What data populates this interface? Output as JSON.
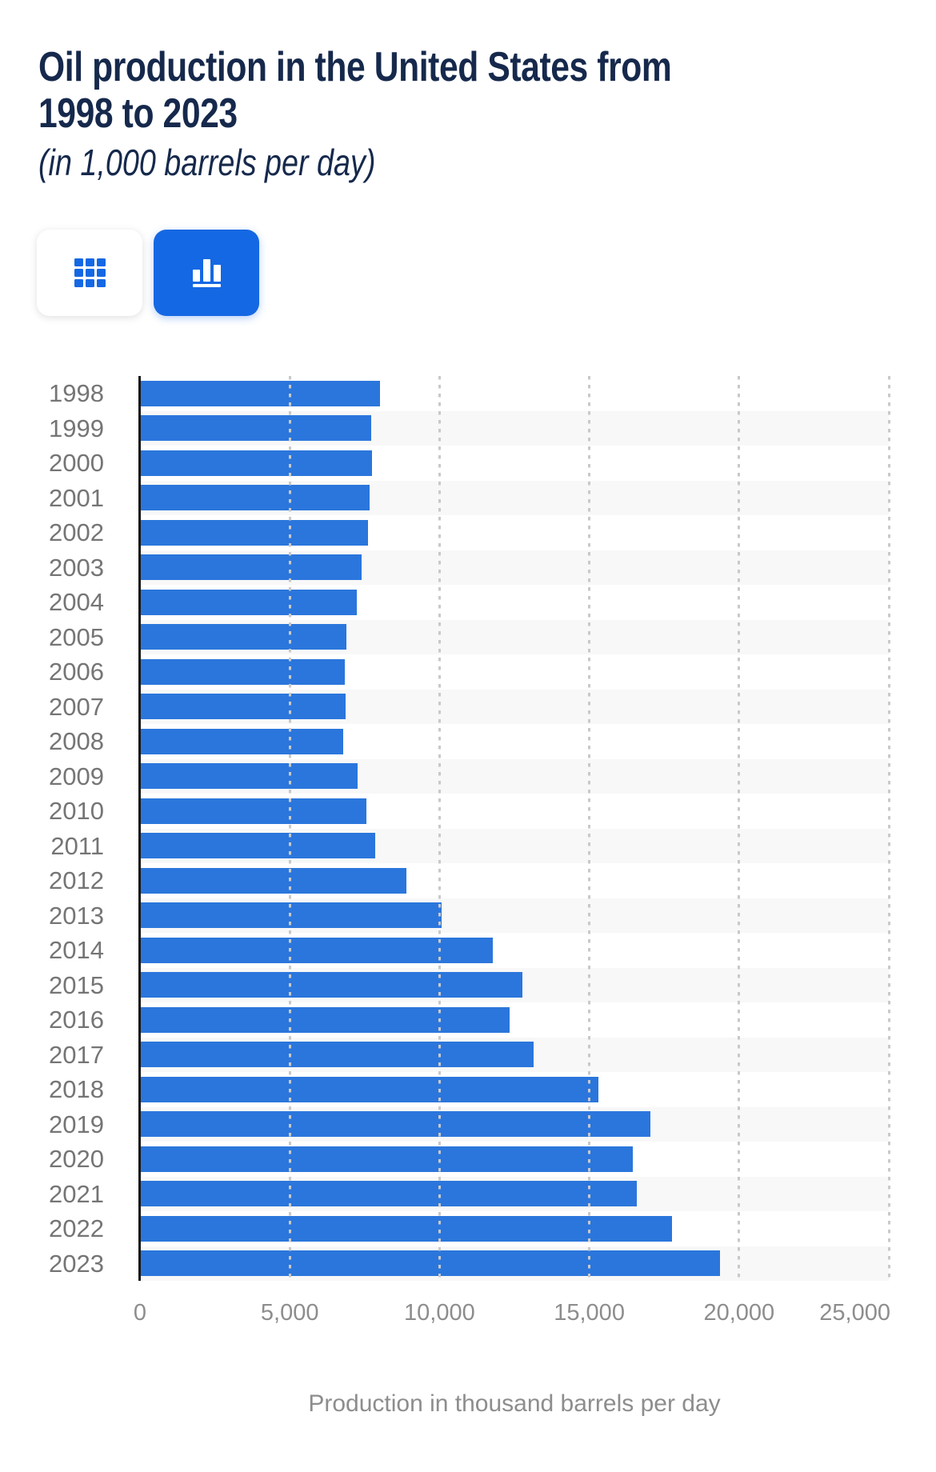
{
  "header": {
    "title": "Oil production in the United States from\n1998 to 2023",
    "subtitle": "(in 1,000 barrels per day)"
  },
  "toolbar": {
    "table_view_button": {
      "icon": "table-grid-icon",
      "active": false
    },
    "chart_view_button": {
      "icon": "bar-chart-icon",
      "active": true
    }
  },
  "colors": {
    "bar": "#2b76dc",
    "accent_button_blue": "#1568e3",
    "title_navy": "#16294c",
    "row_stripe": "#f8f8f8",
    "gridline": "#c9c9c9",
    "year_label_gray": "#757575",
    "tick_label_gray": "#8d8d8d"
  },
  "chart_data": {
    "type": "bar",
    "orientation": "horizontal",
    "categories": [
      "1998",
      "1999",
      "2000",
      "2001",
      "2002",
      "2003",
      "2004",
      "2005",
      "2006",
      "2007",
      "2008",
      "2009",
      "2010",
      "2011",
      "2012",
      "2013",
      "2014",
      "2015",
      "2016",
      "2017",
      "2018",
      "2019",
      "2020",
      "2021",
      "2022",
      "2023"
    ],
    "values": [
      8011,
      7731,
      7733,
      7669,
      7626,
      7400,
      7228,
      6895,
      6841,
      6860,
      6783,
      7263,
      7549,
      7858,
      8900,
      10071,
      11773,
      12773,
      12340,
      13135,
      15310,
      17045,
      16458,
      16585,
      17770,
      19358
    ],
    "title": "Oil production in the United States from 1998 to 2023",
    "subtitle": "(in 1,000 barrels per day)",
    "xlabel": "Production in thousand barrels per day",
    "ylabel": "",
    "xlim": [
      0,
      25000
    ],
    "x_ticks": [
      {
        "value": 0,
        "label": "0"
      },
      {
        "value": 5000,
        "label": "5,000"
      },
      {
        "value": 10000,
        "label": "10,000"
      },
      {
        "value": 15000,
        "label": "15,000"
      },
      {
        "value": 20000,
        "label": "20,000"
      },
      {
        "value": 25000,
        "label": "25,000"
      }
    ],
    "grid": "vertical-dotted",
    "row_striping": "alternate",
    "legend": "none"
  }
}
